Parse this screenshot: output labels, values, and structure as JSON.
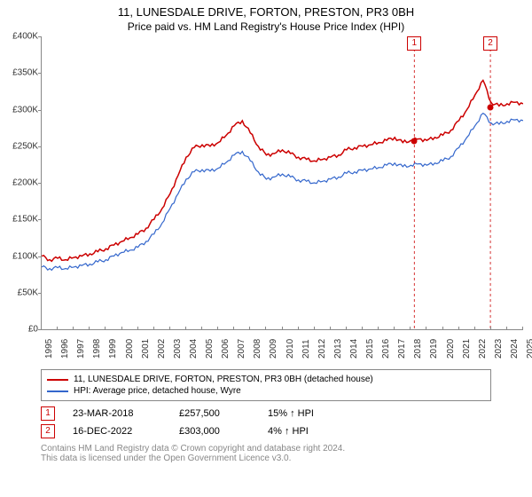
{
  "title": "11, LUNESDALE DRIVE, FORTON, PRESTON, PR3 0BH",
  "subtitle": "Price paid vs. HM Land Registry's House Price Index (HPI)",
  "chart": {
    "type": "line",
    "background_color": "#ffffff",
    "axis_color": "#888888",
    "ylabel_prefix": "£",
    "ylabel_suffix": "K",
    "ylim": [
      0,
      400
    ],
    "ytick_step": 50,
    "xlim": [
      1995,
      2025
    ],
    "xtick_step": 1,
    "series": [
      {
        "name": "price_paid",
        "label": "11, LUNESDALE DRIVE, FORTON, PRESTON, PR3 0BH (detached house)",
        "color": "#cc0000",
        "line_width": 1.5,
        "data": [
          [
            1995,
            100
          ],
          [
            1995.5,
            95
          ],
          [
            1996,
            97
          ],
          [
            1996.5,
            95
          ],
          [
            1997,
            98
          ],
          [
            1997.5,
            100
          ],
          [
            1998,
            103
          ],
          [
            1998.5,
            106
          ],
          [
            1999,
            110
          ],
          [
            1999.5,
            115
          ],
          [
            2000,
            120
          ],
          [
            2000.5,
            125
          ],
          [
            2001,
            130
          ],
          [
            2001.5,
            138
          ],
          [
            2002,
            150
          ],
          [
            2002.5,
            165
          ],
          [
            2003,
            185
          ],
          [
            2003.5,
            210
          ],
          [
            2004,
            235
          ],
          [
            2004.5,
            248
          ],
          [
            2005,
            252
          ],
          [
            2005.5,
            250
          ],
          [
            2006,
            255
          ],
          [
            2006.5,
            265
          ],
          [
            2007,
            278
          ],
          [
            2007.5,
            285
          ],
          [
            2008,
            268
          ],
          [
            2008.5,
            250
          ],
          [
            2009,
            238
          ],
          [
            2009.5,
            240
          ],
          [
            2010,
            245
          ],
          [
            2010.5,
            240
          ],
          [
            2011,
            235
          ],
          [
            2011.5,
            232
          ],
          [
            2012,
            230
          ],
          [
            2012.5,
            232
          ],
          [
            2013,
            235
          ],
          [
            2013.5,
            238
          ],
          [
            2014,
            245
          ],
          [
            2014.5,
            248
          ],
          [
            2015,
            250
          ],
          [
            2015.5,
            252
          ],
          [
            2016,
            255
          ],
          [
            2016.5,
            258
          ],
          [
            2017,
            262
          ],
          [
            2017.5,
            255
          ],
          [
            2018,
            258
          ],
          [
            2018.5,
            260
          ],
          [
            2019,
            258
          ],
          [
            2019.5,
            262
          ],
          [
            2020,
            265
          ],
          [
            2020.5,
            272
          ],
          [
            2021,
            285
          ],
          [
            2021.5,
            300
          ],
          [
            2022,
            320
          ],
          [
            2022.5,
            340
          ],
          [
            2023,
            310
          ],
          [
            2023.5,
            305
          ],
          [
            2024,
            308
          ],
          [
            2024.5,
            310
          ],
          [
            2025,
            308
          ]
        ]
      },
      {
        "name": "hpi",
        "label": "HPI: Average price, detached house, Wyre",
        "color": "#3366cc",
        "line_width": 1.2,
        "data": [
          [
            1995,
            85
          ],
          [
            1995.5,
            83
          ],
          [
            1996,
            84
          ],
          [
            1996.5,
            83
          ],
          [
            1997,
            85
          ],
          [
            1997.5,
            87
          ],
          [
            1998,
            89
          ],
          [
            1998.5,
            92
          ],
          [
            1999,
            95
          ],
          [
            1999.5,
            100
          ],
          [
            2000,
            105
          ],
          [
            2000.5,
            108
          ],
          [
            2001,
            112
          ],
          [
            2001.5,
            120
          ],
          [
            2002,
            130
          ],
          [
            2002.5,
            145
          ],
          [
            2003,
            165
          ],
          [
            2003.5,
            185
          ],
          [
            2004,
            205
          ],
          [
            2004.5,
            215
          ],
          [
            2005,
            218
          ],
          [
            2005.5,
            216
          ],
          [
            2006,
            220
          ],
          [
            2006.5,
            228
          ],
          [
            2007,
            238
          ],
          [
            2007.5,
            243
          ],
          [
            2008,
            230
          ],
          [
            2008.5,
            215
          ],
          [
            2009,
            205
          ],
          [
            2009.5,
            208
          ],
          [
            2010,
            212
          ],
          [
            2010.5,
            208
          ],
          [
            2011,
            204
          ],
          [
            2011.5,
            202
          ],
          [
            2012,
            200
          ],
          [
            2012.5,
            202
          ],
          [
            2013,
            205
          ],
          [
            2013.5,
            208
          ],
          [
            2014,
            213
          ],
          [
            2014.5,
            215
          ],
          [
            2015,
            217
          ],
          [
            2015.5,
            219
          ],
          [
            2016,
            221
          ],
          [
            2016.5,
            224
          ],
          [
            2017,
            227
          ],
          [
            2017.5,
            222
          ],
          [
            2018,
            224
          ],
          [
            2018.5,
            226
          ],
          [
            2019,
            224
          ],
          [
            2019.5,
            227
          ],
          [
            2020,
            230
          ],
          [
            2020.5,
            236
          ],
          [
            2021,
            248
          ],
          [
            2021.5,
            262
          ],
          [
            2022,
            278
          ],
          [
            2022.5,
            295
          ],
          [
            2023,
            282
          ],
          [
            2023.5,
            280
          ],
          [
            2024,
            284
          ],
          [
            2024.5,
            286
          ],
          [
            2025,
            285
          ]
        ]
      }
    ],
    "sale_markers": [
      {
        "num": "1",
        "x": 2018.22,
        "y": 257.5,
        "color": "#cc0000"
      },
      {
        "num": "2",
        "x": 2022.96,
        "y": 303.0,
        "color": "#cc0000"
      }
    ],
    "top_markers": [
      {
        "num": "1",
        "x": 2018.22,
        "color": "#cc0000"
      },
      {
        "num": "2",
        "x": 2022.96,
        "color": "#cc0000"
      }
    ]
  },
  "legend": {
    "items": [
      {
        "color": "#cc0000",
        "label": "11, LUNESDALE DRIVE, FORTON, PRESTON, PR3 0BH (detached house)"
      },
      {
        "color": "#3366cc",
        "label": "HPI: Average price, detached house, Wyre"
      }
    ]
  },
  "annotations": [
    {
      "num": "1",
      "color": "#cc0000",
      "date": "23-MAR-2018",
      "price": "£257,500",
      "pct": "15%",
      "arrow": "↑",
      "suffix": "HPI"
    },
    {
      "num": "2",
      "color": "#cc0000",
      "date": "16-DEC-2022",
      "price": "£303,000",
      "pct": "4%",
      "arrow": "↑",
      "suffix": "HPI"
    }
  ],
  "footer": {
    "line1": "Contains HM Land Registry data © Crown copyright and database right 2024.",
    "line2": "This data is licensed under the Open Government Licence v3.0."
  }
}
